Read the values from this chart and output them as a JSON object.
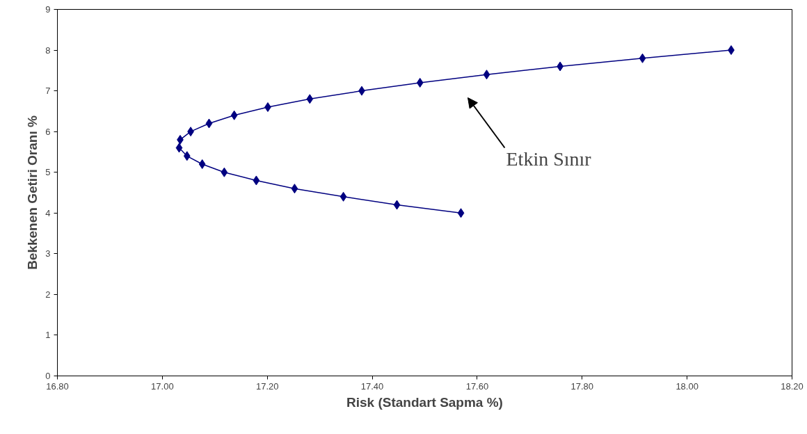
{
  "chart_data": {
    "type": "line",
    "xlabel": "Risk (Standart Sapma %)",
    "ylabel": "Bekkenen Getiri Oranı %",
    "x": [
      17.569,
      17.447,
      17.345,
      17.252,
      17.179,
      17.118,
      17.076,
      17.047,
      17.032,
      17.034,
      17.054,
      17.089,
      17.137,
      17.201,
      17.281,
      17.38,
      17.491,
      17.618,
      17.758,
      17.915,
      18.084
    ],
    "series": [
      {
        "color": "#000080",
        "values": [
          4.0,
          4.2,
          4.4,
          4.6,
          4.8,
          5.0,
          5.2,
          5.4,
          5.6,
          5.8,
          6.0,
          6.2,
          6.4,
          6.6,
          6.8,
          7.0,
          7.2,
          7.4,
          7.6,
          7.8,
          8.0
        ]
      }
    ],
    "marker": "diamond",
    "line_style": "solid",
    "grid": false,
    "xlim": [
      16.8,
      18.2
    ],
    "ylim": [
      0,
      9
    ],
    "xticks": [
      {
        "value": 16.8,
        "label": "16.80"
      },
      {
        "value": 17.0,
        "label": "17.00"
      },
      {
        "value": 17.2,
        "label": "17.20"
      },
      {
        "value": 17.4,
        "label": "17.40"
      },
      {
        "value": 17.6,
        "label": "17.60"
      },
      {
        "value": 17.8,
        "label": "17.80"
      },
      {
        "value": 18.0,
        "label": "18.00"
      },
      {
        "value": 18.2,
        "label": "18.20"
      }
    ],
    "yticks": [
      0,
      1,
      2,
      3,
      4,
      5,
      6,
      7,
      8,
      9
    ],
    "annotations": [
      "Etkin Sınır"
    ]
  }
}
